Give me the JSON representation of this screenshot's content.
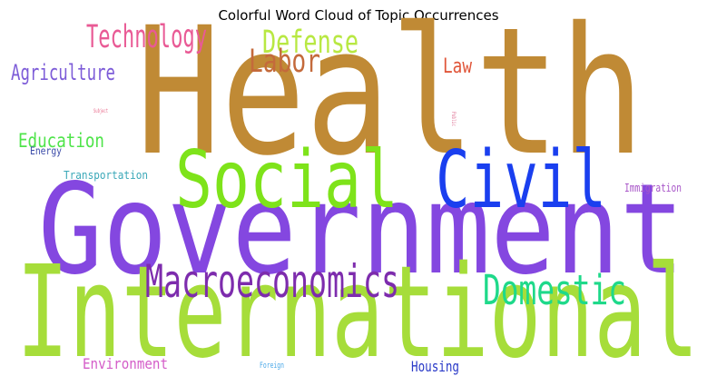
{
  "chart_data": {
    "type": "wordcloud",
    "title": "Colorful Word Cloud of Topic Occurrences",
    "words": [
      {
        "text": "Health",
        "color": "#c08a35"
      },
      {
        "text": "Government",
        "color": "#8447e0"
      },
      {
        "text": "International",
        "color": "#a6dd3a"
      },
      {
        "text": "Social",
        "color": "#7ee31a"
      },
      {
        "text": "Civil",
        "color": "#1a3fef"
      },
      {
        "text": "Macroeconomics",
        "color": "#7d2cad"
      },
      {
        "text": "Domestic",
        "color": "#1fd98a"
      },
      {
        "text": "Technology",
        "color": "#e95a95"
      },
      {
        "text": "Defense",
        "color": "#b8e842"
      },
      {
        "text": "Labor",
        "color": "#c46a3b"
      },
      {
        "text": "Law",
        "color": "#e0563a"
      },
      {
        "text": "Agriculture",
        "color": "#7d5cd8"
      },
      {
        "text": "Education",
        "color": "#4fe44a"
      },
      {
        "text": "Energy",
        "color": "#3a4aa8"
      },
      {
        "text": "Transportation",
        "color": "#3aa8b8"
      },
      {
        "text": "Immigration",
        "color": "#a856c8"
      },
      {
        "text": "Environment",
        "color": "#d45cc8"
      },
      {
        "text": "Housing",
        "color": "#2a3ac8"
      },
      {
        "text": "Foreign",
        "color": "#4aa8e8"
      },
      {
        "text": "Public",
        "color": "#e07a9a"
      },
      {
        "text": "Subject",
        "color": "#e86a8a"
      }
    ]
  }
}
